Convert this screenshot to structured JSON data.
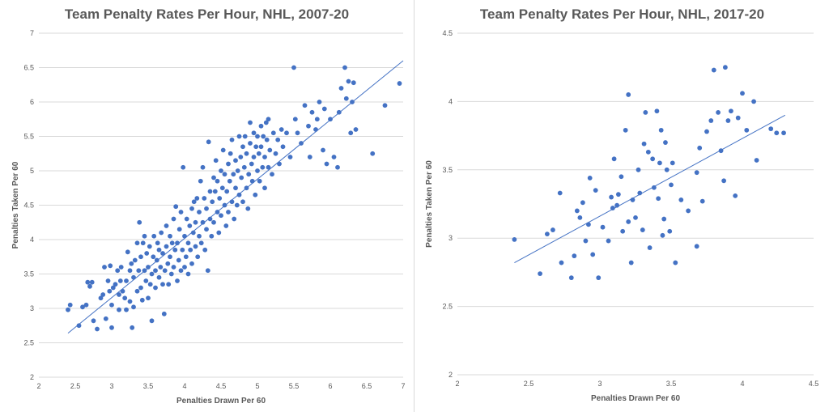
{
  "chart_data": [
    {
      "type": "scatter",
      "title": "Team Penalty Rates Per Hour, NHL, 2007-20",
      "xlabel": "Penalties Drawn Per 60",
      "ylabel": "Penalties Taken Per 60",
      "xlim": [
        2,
        7
      ],
      "ylim": [
        2,
        7
      ],
      "xticks": [
        2,
        2.5,
        3,
        3.5,
        4,
        4.5,
        5,
        5.5,
        6,
        6.5,
        7
      ],
      "yticks": [
        2,
        2.5,
        3,
        3.5,
        4,
        4.5,
        5,
        5.5,
        6,
        6.5,
        7
      ],
      "grid": "horizontal",
      "trendline": {
        "x": [
          2.4,
          7.0
        ],
        "y": [
          2.64,
          6.6
        ]
      },
      "points": [
        [
          2.4,
          2.98
        ],
        [
          2.43,
          3.05
        ],
        [
          2.55,
          2.75
        ],
        [
          2.6,
          3.02
        ],
        [
          2.65,
          3.05
        ],
        [
          2.67,
          3.38
        ],
        [
          2.7,
          3.32
        ],
        [
          2.73,
          3.38
        ],
        [
          2.75,
          2.82
        ],
        [
          2.8,
          2.7
        ],
        [
          2.85,
          3.15
        ],
        [
          2.88,
          3.2
        ],
        [
          2.9,
          3.6
        ],
        [
          2.92,
          2.85
        ],
        [
          2.95,
          3.4
        ],
        [
          2.97,
          3.25
        ],
        [
          2.98,
          3.62
        ],
        [
          3.0,
          2.72
        ],
        [
          3.0,
          3.05
        ],
        [
          3.02,
          3.3
        ],
        [
          3.05,
          3.35
        ],
        [
          3.08,
          3.55
        ],
        [
          3.1,
          3.2
        ],
        [
          3.1,
          2.98
        ],
        [
          3.12,
          3.4
        ],
        [
          3.13,
          3.6
        ],
        [
          3.15,
          3.25
        ],
        [
          3.18,
          3.15
        ],
        [
          3.2,
          2.98
        ],
        [
          3.2,
          3.4
        ],
        [
          3.22,
          3.82
        ],
        [
          3.25,
          3.1
        ],
        [
          3.25,
          3.55
        ],
        [
          3.27,
          3.65
        ],
        [
          3.28,
          2.72
        ],
        [
          3.3,
          3.02
        ],
        [
          3.3,
          3.45
        ],
        [
          3.32,
          3.7
        ],
        [
          3.35,
          3.25
        ],
        [
          3.35,
          3.95
        ],
        [
          3.37,
          3.55
        ],
        [
          3.38,
          4.25
        ],
        [
          3.4,
          3.3
        ],
        [
          3.4,
          3.75
        ],
        [
          3.42,
          3.12
        ],
        [
          3.43,
          3.95
        ],
        [
          3.45,
          3.55
        ],
        [
          3.45,
          4.05
        ],
        [
          3.47,
          3.4
        ],
        [
          3.48,
          3.8
        ],
        [
          3.5,
          3.15
        ],
        [
          3.5,
          3.6
        ],
        [
          3.52,
          3.9
        ],
        [
          3.53,
          3.35
        ],
        [
          3.55,
          2.82
        ],
        [
          3.55,
          3.5
        ],
        [
          3.57,
          3.75
        ],
        [
          3.58,
          4.05
        ],
        [
          3.6,
          3.3
        ],
        [
          3.6,
          3.55
        ],
        [
          3.62,
          3.7
        ],
        [
          3.63,
          3.95
        ],
        [
          3.65,
          3.45
        ],
        [
          3.65,
          3.85
        ],
        [
          3.67,
          3.6
        ],
        [
          3.68,
          4.1
        ],
        [
          3.7,
          3.35
        ],
        [
          3.7,
          3.8
        ],
        [
          3.72,
          2.92
        ],
        [
          3.73,
          3.55
        ],
        [
          3.75,
          3.9
        ],
        [
          3.75,
          4.2
        ],
        [
          3.77,
          3.65
        ],
        [
          3.78,
          3.35
        ],
        [
          3.8,
          3.75
        ],
        [
          3.8,
          4.05
        ],
        [
          3.82,
          3.5
        ],
        [
          3.83,
          3.95
        ],
        [
          3.85,
          4.3
        ],
        [
          3.85,
          3.6
        ],
        [
          3.87,
          3.85
        ],
        [
          3.88,
          4.48
        ],
        [
          3.9,
          3.4
        ],
        [
          3.9,
          3.95
        ],
        [
          3.92,
          3.7
        ],
        [
          3.93,
          4.15
        ],
        [
          3.95,
          3.55
        ],
        [
          3.95,
          4.4
        ],
        [
          3.97,
          3.85
        ],
        [
          3.98,
          5.05
        ],
        [
          4.0,
          3.6
        ],
        [
          4.0,
          4.05
        ],
        [
          4.02,
          3.75
        ],
        [
          4.03,
          4.3
        ],
        [
          4.05,
          3.5
        ],
        [
          4.05,
          3.95
        ],
        [
          4.07,
          4.2
        ],
        [
          4.08,
          3.85
        ],
        [
          4.1,
          4.45
        ],
        [
          4.1,
          3.65
        ],
        [
          4.12,
          4.1
        ],
        [
          4.13,
          4.55
        ],
        [
          4.15,
          3.9
        ],
        [
          4.15,
          4.25
        ],
        [
          4.17,
          4.6
        ],
        [
          4.18,
          3.75
        ],
        [
          4.2,
          4.05
        ],
        [
          4.2,
          4.4
        ],
        [
          4.22,
          4.85
        ],
        [
          4.23,
          3.95
        ],
        [
          4.25,
          4.25
        ],
        [
          4.25,
          5.05
        ],
        [
          4.27,
          4.6
        ],
        [
          4.28,
          3.85
        ],
        [
          4.3,
          4.15
        ],
        [
          4.3,
          4.45
        ],
        [
          4.32,
          3.55
        ],
        [
          4.33,
          5.42
        ],
        [
          4.35,
          4.3
        ],
        [
          4.35,
          4.7
        ],
        [
          4.37,
          4.05
        ],
        [
          4.38,
          4.55
        ],
        [
          4.4,
          4.9
        ],
        [
          4.4,
          4.25
        ],
        [
          4.42,
          4.7
        ],
        [
          4.43,
          5.15
        ],
        [
          4.45,
          4.4
        ],
        [
          4.45,
          4.85
        ],
        [
          4.47,
          4.1
        ],
        [
          4.48,
          4.6
        ],
        [
          4.5,
          5.0
        ],
        [
          4.5,
          4.35
        ],
        [
          4.52,
          4.75
        ],
        [
          4.53,
          5.3
        ],
        [
          4.55,
          4.5
        ],
        [
          4.55,
          4.95
        ],
        [
          4.57,
          4.2
        ],
        [
          4.58,
          4.7
        ],
        [
          4.6,
          5.1
        ],
        [
          4.6,
          4.4
        ],
        [
          4.62,
          4.85
        ],
        [
          4.63,
          5.25
        ],
        [
          4.65,
          4.55
        ],
        [
          4.65,
          5.45
        ],
        [
          4.67,
          4.95
        ],
        [
          4.68,
          4.3
        ],
        [
          4.7,
          4.75
        ],
        [
          4.7,
          5.15
        ],
        [
          4.72,
          4.5
        ],
        [
          4.73,
          5.0
        ],
        [
          4.75,
          5.5
        ],
        [
          4.75,
          4.65
        ],
        [
          4.77,
          5.2
        ],
        [
          4.78,
          4.9
        ],
        [
          4.8,
          5.35
        ],
        [
          4.8,
          4.55
        ],
        [
          4.82,
          5.05
        ],
        [
          4.83,
          5.5
        ],
        [
          4.85,
          4.75
        ],
        [
          4.85,
          5.25
        ],
        [
          4.87,
          4.45
        ],
        [
          4.88,
          4.95
        ],
        [
          4.9,
          5.4
        ],
        [
          4.9,
          5.7
        ],
        [
          4.92,
          5.1
        ],
        [
          4.93,
          4.85
        ],
        [
          4.95,
          5.55
        ],
        [
          4.95,
          5.2
        ],
        [
          4.97,
          4.65
        ],
        [
          4.98,
          5.35
        ],
        [
          5.0,
          5.0
        ],
        [
          5.0,
          5.5
        ],
        [
          5.02,
          5.25
        ],
        [
          5.03,
          4.85
        ],
        [
          5.05,
          5.65
        ],
        [
          5.05,
          5.35
        ],
        [
          5.07,
          5.05
        ],
        [
          5.08,
          5.5
        ],
        [
          5.1,
          4.75
        ],
        [
          5.1,
          5.2
        ],
        [
          5.12,
          5.7
        ],
        [
          5.13,
          5.45
        ],
        [
          5.15,
          5.05
        ],
        [
          5.15,
          5.75
        ],
        [
          5.17,
          5.3
        ],
        [
          5.2,
          4.95
        ],
        [
          5.22,
          5.55
        ],
        [
          5.25,
          5.25
        ],
        [
          5.28,
          5.45
        ],
        [
          5.3,
          5.1
        ],
        [
          5.33,
          5.6
        ],
        [
          5.35,
          5.35
        ],
        [
          5.4,
          5.55
        ],
        [
          5.45,
          5.2
        ],
        [
          5.5,
          6.5
        ],
        [
          5.52,
          5.75
        ],
        [
          5.55,
          5.55
        ],
        [
          5.6,
          5.4
        ],
        [
          5.65,
          5.95
        ],
        [
          5.7,
          5.65
        ],
        [
          5.72,
          5.2
        ],
        [
          5.75,
          5.85
        ],
        [
          5.8,
          5.6
        ],
        [
          5.82,
          5.75
        ],
        [
          5.85,
          6.0
        ],
        [
          5.9,
          5.3
        ],
        [
          5.92,
          5.9
        ],
        [
          5.95,
          5.1
        ],
        [
          6.0,
          5.75
        ],
        [
          6.05,
          5.2
        ],
        [
          6.1,
          5.05
        ],
        [
          6.12,
          5.85
        ],
        [
          6.15,
          6.2
        ],
        [
          6.2,
          6.5
        ],
        [
          6.22,
          6.05
        ],
        [
          6.25,
          6.3
        ],
        [
          6.28,
          5.55
        ],
        [
          6.3,
          6.0
        ],
        [
          6.32,
          6.28
        ],
        [
          6.35,
          5.6
        ],
        [
          6.58,
          5.25
        ],
        [
          6.75,
          5.95
        ],
        [
          6.95,
          6.27
        ]
      ]
    },
    {
      "type": "scatter",
      "title": "Team Penalty Rates Per Hour, NHL, 2017-20",
      "xlabel": "Penalties Drawn Per 60",
      "ylabel": "Penalties Taken Per 60",
      "xlim": [
        2,
        4.5
      ],
      "ylim": [
        2,
        4.5
      ],
      "xticks": [
        2,
        2.5,
        3,
        3.5,
        4,
        4.5
      ],
      "yticks": [
        2,
        2.5,
        3,
        3.5,
        4,
        4.5
      ],
      "grid": "horizontal",
      "trendline": {
        "x": [
          2.4,
          4.3
        ],
        "y": [
          2.82,
          3.9
        ]
      },
      "points": [
        [
          2.4,
          2.99
        ],
        [
          2.58,
          2.74
        ],
        [
          2.63,
          3.03
        ],
        [
          2.67,
          3.06
        ],
        [
          2.72,
          3.33
        ],
        [
          2.73,
          2.82
        ],
        [
          2.8,
          2.71
        ],
        [
          2.82,
          2.87
        ],
        [
          2.84,
          3.2
        ],
        [
          2.86,
          3.15
        ],
        [
          2.88,
          3.26
        ],
        [
          2.9,
          2.98
        ],
        [
          2.92,
          3.1
        ],
        [
          2.93,
          3.44
        ],
        [
          2.95,
          2.88
        ],
        [
          2.97,
          3.35
        ],
        [
          2.99,
          2.71
        ],
        [
          3.02,
          3.08
        ],
        [
          3.06,
          2.98
        ],
        [
          3.08,
          3.3
        ],
        [
          3.09,
          3.22
        ],
        [
          3.1,
          3.58
        ],
        [
          3.12,
          3.24
        ],
        [
          3.13,
          3.32
        ],
        [
          3.15,
          3.45
        ],
        [
          3.16,
          3.05
        ],
        [
          3.18,
          3.79
        ],
        [
          3.2,
          4.05
        ],
        [
          3.2,
          3.12
        ],
        [
          3.22,
          2.82
        ],
        [
          3.23,
          3.28
        ],
        [
          3.25,
          3.15
        ],
        [
          3.27,
          3.5
        ],
        [
          3.28,
          3.33
        ],
        [
          3.3,
          3.06
        ],
        [
          3.31,
          3.69
        ],
        [
          3.32,
          3.92
        ],
        [
          3.34,
          3.63
        ],
        [
          3.35,
          2.93
        ],
        [
          3.37,
          3.58
        ],
        [
          3.38,
          3.37
        ],
        [
          3.4,
          3.93
        ],
        [
          3.41,
          3.29
        ],
        [
          3.42,
          3.55
        ],
        [
          3.43,
          3.79
        ],
        [
          3.44,
          3.02
        ],
        [
          3.45,
          3.14
        ],
        [
          3.46,
          3.7
        ],
        [
          3.47,
          3.5
        ],
        [
          3.49,
          3.05
        ],
        [
          3.5,
          3.39
        ],
        [
          3.51,
          3.55
        ],
        [
          3.53,
          2.82
        ],
        [
          3.57,
          3.28
        ],
        [
          3.62,
          3.2
        ],
        [
          3.68,
          3.48
        ],
        [
          3.68,
          2.94
        ],
        [
          3.7,
          3.66
        ],
        [
          3.72,
          3.27
        ],
        [
          3.75,
          3.78
        ],
        [
          3.78,
          3.86
        ],
        [
          3.8,
          4.23
        ],
        [
          3.83,
          3.92
        ],
        [
          3.85,
          3.64
        ],
        [
          3.87,
          3.42
        ],
        [
          3.88,
          4.25
        ],
        [
          3.9,
          3.86
        ],
        [
          3.92,
          3.93
        ],
        [
          3.95,
          3.31
        ],
        [
          3.97,
          3.88
        ],
        [
          4.0,
          4.06
        ],
        [
          4.03,
          3.79
        ],
        [
          4.08,
          4.0
        ],
        [
          4.1,
          3.57
        ],
        [
          4.2,
          3.8
        ],
        [
          4.24,
          3.77
        ],
        [
          4.29,
          3.77
        ]
      ]
    }
  ]
}
